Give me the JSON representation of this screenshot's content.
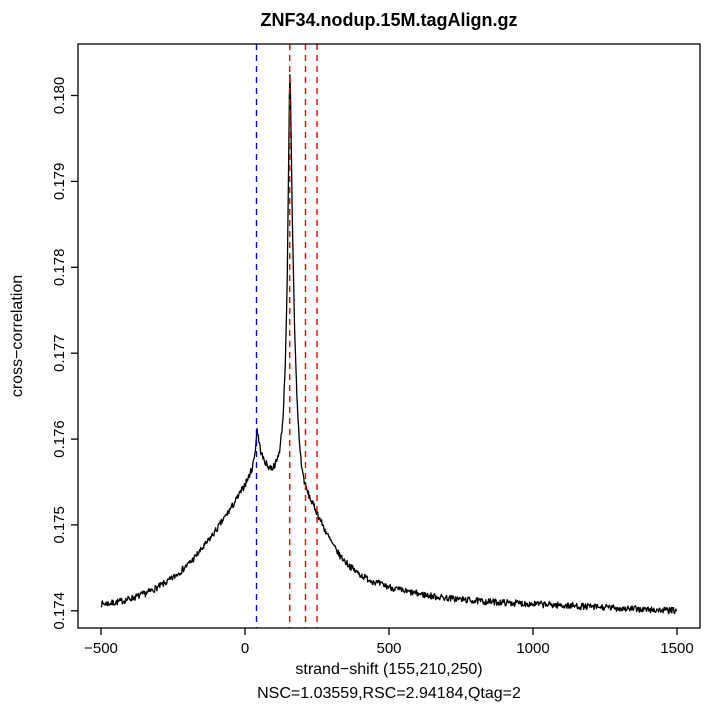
{
  "chart_data": {
    "type": "line",
    "title": "ZNF34.nodup.15M.tagAlign.gz",
    "xlabel": "strand−shift (155,210,250)",
    "x_sublabel": "NSC=1.03559,RSC=2.94184,Qtag=2",
    "ylabel": "cross−correlation",
    "xlim": [
      -580,
      1580
    ],
    "ylim": [
      0.1738,
      0.1806
    ],
    "x_ticks": [
      -500,
      0,
      500,
      1000,
      1500
    ],
    "x_tick_labels": [
      "−500",
      "0",
      "500",
      "1000",
      "1500"
    ],
    "y_ticks": [
      0.174,
      0.175,
      0.176,
      0.177,
      0.178,
      0.179,
      0.18
    ],
    "y_tick_labels": [
      "0.174",
      "0.175",
      "0.176",
      "0.177",
      "0.178",
      "0.179",
      "0.180"
    ],
    "grid": false,
    "legend": null,
    "line_color": "#000000",
    "vlines": [
      {
        "x": 40,
        "color": "#0000cc",
        "style": "dashed",
        "meaning": "phantom-peak-read-length"
      },
      {
        "x": 155,
        "color": "#ee0000",
        "style": "dashed",
        "meaning": "fragment-length-peak-1"
      },
      {
        "x": 210,
        "color": "#ee0000",
        "style": "dashed",
        "meaning": "fragment-length-peak-2"
      },
      {
        "x": 250,
        "color": "#ee0000",
        "style": "dashed",
        "meaning": "fragment-length-peak-3"
      }
    ],
    "metrics": {
      "NSC": 1.03559,
      "RSC": 2.94184,
      "Qtag": 2,
      "fragment_length_peaks": [
        155,
        210,
        250
      ]
    },
    "noise_amplitude": 3.8e-05,
    "series": [
      {
        "name": "cross-correlation",
        "anchors": [
          [
            -500,
            0.17408
          ],
          [
            -460,
            0.17409
          ],
          [
            -420,
            0.17412
          ],
          [
            -380,
            0.17416
          ],
          [
            -340,
            0.17421
          ],
          [
            -300,
            0.17428
          ],
          [
            -260,
            0.17436
          ],
          [
            -220,
            0.17447
          ],
          [
            -180,
            0.1746
          ],
          [
            -140,
            0.17476
          ],
          [
            -100,
            0.17494
          ],
          [
            -70,
            0.17509
          ],
          [
            -40,
            0.17524
          ],
          [
            -10,
            0.17541
          ],
          [
            10,
            0.17554
          ],
          [
            25,
            0.17566
          ],
          [
            35,
            0.17585
          ],
          [
            42,
            0.17612
          ],
          [
            48,
            0.17598
          ],
          [
            55,
            0.17585
          ],
          [
            65,
            0.17576
          ],
          [
            80,
            0.17568
          ],
          [
            95,
            0.17566
          ],
          [
            110,
            0.17574
          ],
          [
            122,
            0.1759
          ],
          [
            132,
            0.17625
          ],
          [
            140,
            0.1769
          ],
          [
            147,
            0.1779
          ],
          [
            152,
            0.17935
          ],
          [
            155,
            0.18032
          ],
          [
            158,
            0.18
          ],
          [
            162,
            0.17905
          ],
          [
            167,
            0.1781
          ],
          [
            173,
            0.1772
          ],
          [
            180,
            0.1765
          ],
          [
            188,
            0.176
          ],
          [
            196,
            0.1757
          ],
          [
            205,
            0.17552
          ],
          [
            215,
            0.1754
          ],
          [
            230,
            0.17528
          ],
          [
            245,
            0.17518
          ],
          [
            260,
            0.17507
          ],
          [
            275,
            0.17496
          ],
          [
            290,
            0.17486
          ],
          [
            310,
            0.17474
          ],
          [
            330,
            0.17464
          ],
          [
            355,
            0.17455
          ],
          [
            380,
            0.17447
          ],
          [
            410,
            0.1744
          ],
          [
            440,
            0.17435
          ],
          [
            470,
            0.17431
          ],
          [
            500,
            0.17428
          ],
          [
            550,
            0.17423
          ],
          [
            600,
            0.1742
          ],
          [
            650,
            0.17417
          ],
          [
            700,
            0.17415
          ],
          [
            760,
            0.17413
          ],
          [
            820,
            0.17411
          ],
          [
            880,
            0.1741
          ],
          [
            940,
            0.17409
          ],
          [
            1000,
            0.17408
          ],
          [
            1060,
            0.17407
          ],
          [
            1120,
            0.17406
          ],
          [
            1180,
            0.17405
          ],
          [
            1240,
            0.17404
          ],
          [
            1300,
            0.17403
          ],
          [
            1360,
            0.17402
          ],
          [
            1420,
            0.17401
          ],
          [
            1500,
            0.174
          ]
        ]
      }
    ]
  }
}
